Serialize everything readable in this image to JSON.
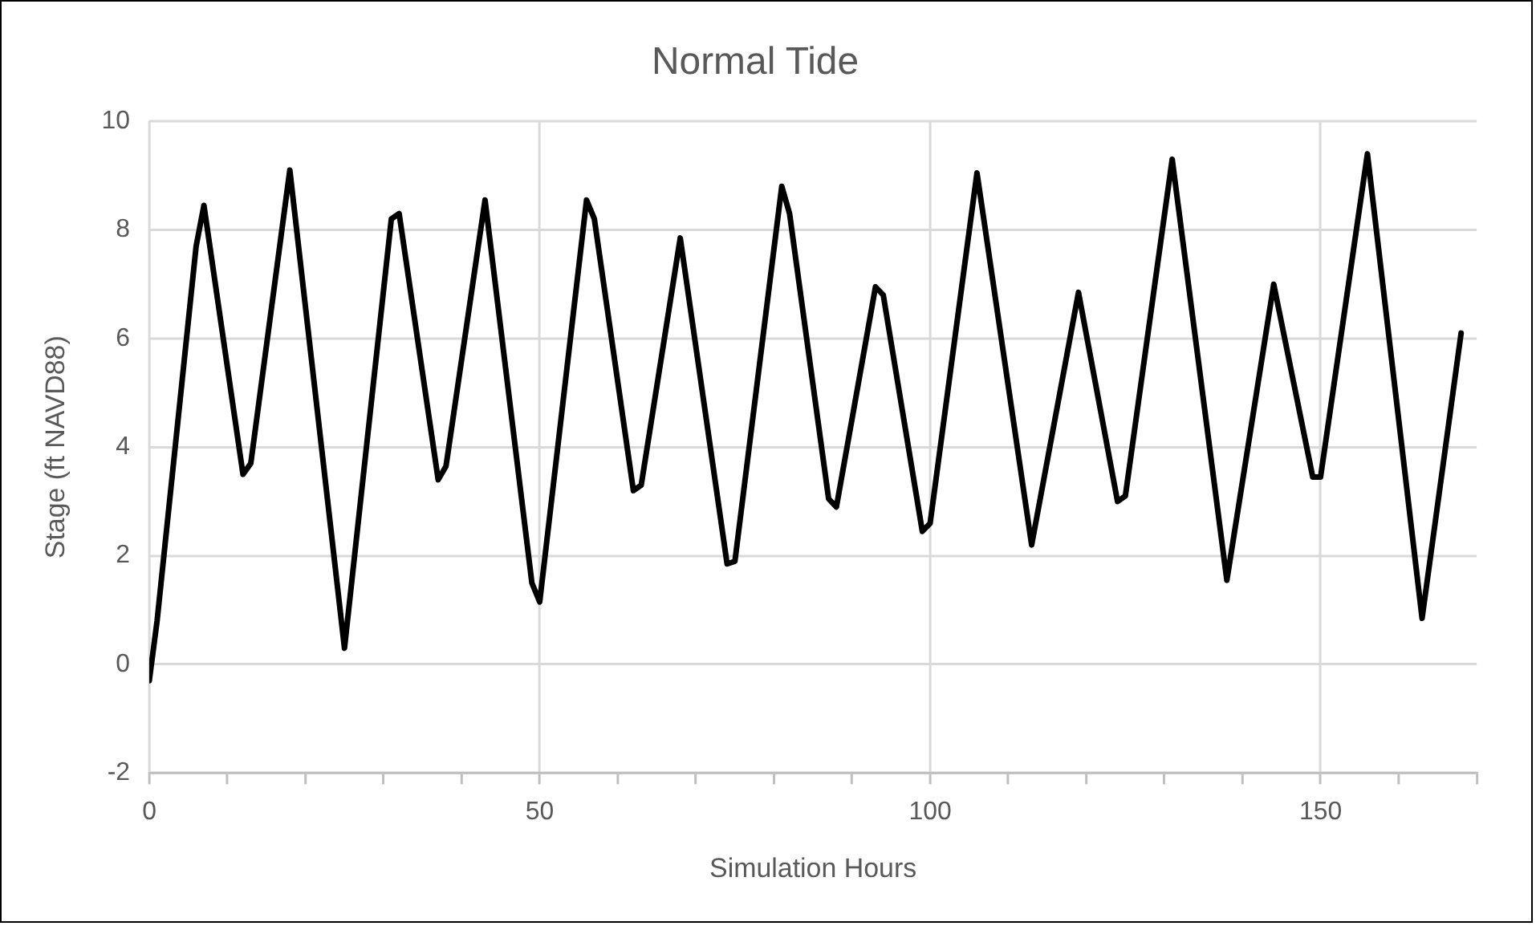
{
  "chart_data": {
    "type": "line",
    "title": "Normal Tide",
    "xlabel": "Simulation Hours",
    "ylabel": "Stage (ft NAVD88)",
    "color": "#000000",
    "grid": true,
    "x": [
      0,
      1,
      6,
      7,
      12,
      13,
      18,
      25,
      31,
      32,
      37,
      38,
      43,
      49,
      50,
      56,
      57,
      62,
      63,
      68,
      74,
      75,
      81,
      82,
      87,
      88,
      93,
      94,
      99,
      100,
      106,
      113,
      119,
      124,
      125,
      131,
      138,
      144,
      149,
      150,
      156,
      163,
      168
    ],
    "values": [
      -0.3,
      0.8,
      7.7,
      8.45,
      3.5,
      3.7,
      9.1,
      0.3,
      8.2,
      8.3,
      3.4,
      3.65,
      8.55,
      1.5,
      1.15,
      8.55,
      8.2,
      3.2,
      3.3,
      7.85,
      1.85,
      1.9,
      8.8,
      8.3,
      3.05,
      2.9,
      6.95,
      6.8,
      2.45,
      2.6,
      9.05,
      2.2,
      6.85,
      3.0,
      3.1,
      9.3,
      1.55,
      7.0,
      3.45,
      3.45,
      9.4,
      0.85,
      6.1
    ],
    "xlim": [
      0,
      170
    ],
    "xticks": [
      0,
      {
        "value": 10,
        "label": null
      },
      {
        "value": 20,
        "label": null
      },
      {
        "value": 30,
        "label": null
      },
      {
        "value": 40,
        "label": null
      },
      50,
      {
        "value": 60,
        "label": null
      },
      {
        "value": 70,
        "label": null
      },
      {
        "value": 80,
        "label": null
      },
      {
        "value": 90,
        "label": null
      },
      100,
      {
        "value": 110,
        "label": null
      },
      {
        "value": 120,
        "label": null
      },
      {
        "value": 130,
        "label": null
      },
      {
        "value": 140,
        "label": null
      },
      150,
      {
        "value": 160,
        "label": null
      },
      {
        "value": 170,
        "label": null
      }
    ],
    "ylim": [
      -2,
      10
    ],
    "yticks": [
      -2,
      0,
      2,
      4,
      6,
      8,
      10
    ]
  }
}
